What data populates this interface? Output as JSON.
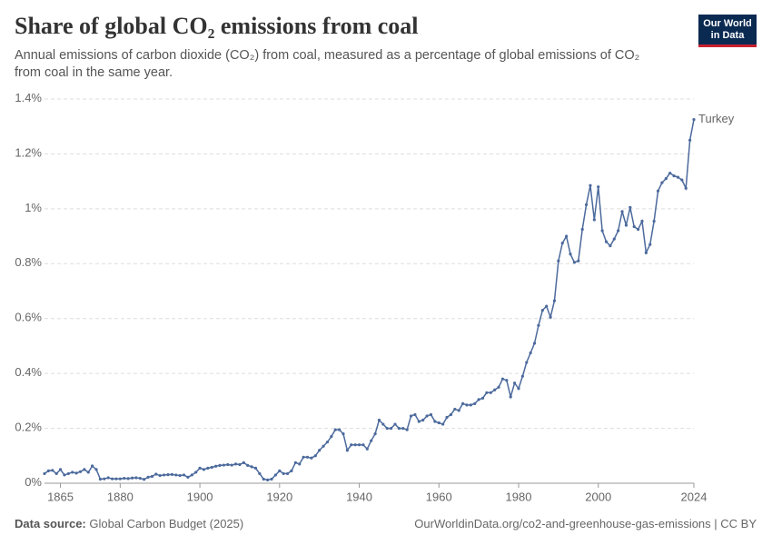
{
  "chart_data": {
    "type": "line",
    "title": "Share of global CO₂ emissions from coal",
    "subtitle": "Annual emissions of carbon dioxide (CO₂) from coal, measured as a percentage of global emissions of CO₂ from coal in the same year.",
    "logo": [
      "Our World",
      "in Data"
    ],
    "source_label": "Data source:",
    "source": "Global Carbon Budget (2025)",
    "url": "OurWorldinData.org/co2-and-greenhouse-gas-emissions | CC BY",
    "x": [
      1861,
      1862,
      1863,
      1864,
      1865,
      1866,
      1867,
      1868,
      1869,
      1870,
      1871,
      1872,
      1873,
      1874,
      1875,
      1876,
      1877,
      1878,
      1879,
      1880,
      1881,
      1882,
      1883,
      1884,
      1885,
      1886,
      1887,
      1888,
      1889,
      1890,
      1891,
      1892,
      1893,
      1894,
      1895,
      1896,
      1897,
      1898,
      1899,
      1900,
      1901,
      1902,
      1903,
      1904,
      1905,
      1906,
      1907,
      1908,
      1909,
      1910,
      1911,
      1912,
      1913,
      1914,
      1915,
      1916,
      1917,
      1918,
      1919,
      1920,
      1921,
      1922,
      1923,
      1924,
      1925,
      1926,
      1927,
      1928,
      1929,
      1930,
      1931,
      1932,
      1933,
      1934,
      1935,
      1936,
      1937,
      1938,
      1939,
      1940,
      1941,
      1942,
      1943,
      1944,
      1945,
      1946,
      1947,
      1948,
      1949,
      1950,
      1951,
      1952,
      1953,
      1954,
      1955,
      1956,
      1957,
      1958,
      1959,
      1960,
      1961,
      1962,
      1963,
      1964,
      1965,
      1966,
      1967,
      1968,
      1969,
      1970,
      1971,
      1972,
      1973,
      1974,
      1975,
      1976,
      1977,
      1978,
      1979,
      1980,
      1981,
      1982,
      1983,
      1984,
      1985,
      1986,
      1987,
      1988,
      1989,
      1990,
      1991,
      1992,
      1993,
      1994,
      1995,
      1996,
      1997,
      1998,
      1999,
      2000,
      2001,
      2002,
      2003,
      2004,
      2005,
      2006,
      2007,
      2008,
      2009,
      2010,
      2011,
      2012,
      2013,
      2014,
      2015,
      2016,
      2017,
      2018,
      2019,
      2020,
      2021,
      2022,
      2023,
      2024
    ],
    "series": [
      {
        "name": "Turkey",
        "color": "#4c6a9c",
        "values": [
          0.035,
          0.045,
          0.047,
          0.035,
          0.05,
          0.03,
          0.035,
          0.04,
          0.037,
          0.042,
          0.05,
          0.04,
          0.063,
          0.05,
          0.015,
          0.016,
          0.02,
          0.016,
          0.016,
          0.016,
          0.018,
          0.017,
          0.019,
          0.02,
          0.018,
          0.014,
          0.022,
          0.025,
          0.033,
          0.028,
          0.03,
          0.031,
          0.032,
          0.03,
          0.028,
          0.03,
          0.022,
          0.03,
          0.04,
          0.055,
          0.05,
          0.055,
          0.058,
          0.062,
          0.065,
          0.066,
          0.068,
          0.066,
          0.07,
          0.068,
          0.075,
          0.065,
          0.06,
          0.055,
          0.035,
          0.015,
          0.012,
          0.015,
          0.03,
          0.045,
          0.035,
          0.035,
          0.045,
          0.075,
          0.07,
          0.095,
          0.095,
          0.092,
          0.1,
          0.12,
          0.135,
          0.15,
          0.17,
          0.195,
          0.195,
          0.18,
          0.12,
          0.14,
          0.14,
          0.14,
          0.14,
          0.125,
          0.155,
          0.18,
          0.23,
          0.215,
          0.2,
          0.2,
          0.215,
          0.2,
          0.2,
          0.195,
          0.245,
          0.25,
          0.225,
          0.23,
          0.245,
          0.25,
          0.225,
          0.22,
          0.215,
          0.24,
          0.25,
          0.27,
          0.265,
          0.29,
          0.285,
          0.285,
          0.29,
          0.305,
          0.31,
          0.33,
          0.33,
          0.34,
          0.35,
          0.38,
          0.375,
          0.315,
          0.365,
          0.345,
          0.39,
          0.44,
          0.475,
          0.51,
          0.575,
          0.63,
          0.645,
          0.605,
          0.665,
          0.81,
          0.875,
          0.9,
          0.835,
          0.805,
          0.81,
          0.925,
          1.015,
          1.085,
          0.96,
          1.08,
          0.92,
          0.88,
          0.865,
          0.89,
          0.92,
          0.99,
          0.94,
          1.005,
          0.935,
          0.925,
          0.955,
          0.84,
          0.87,
          0.955,
          1.065,
          1.095,
          1.11,
          1.13,
          1.12,
          1.115,
          1.105,
          1.075,
          1.25,
          1.325
        ]
      }
    ],
    "xlim": [
      1861,
      2024
    ],
    "xticks": [
      1865,
      1880,
      1900,
      1920,
      1940,
      1960,
      1980,
      2000,
      2024
    ],
    "ylim": [
      0,
      1.4
    ],
    "yticks": [
      {
        "value": 0,
        "label": "0%"
      },
      {
        "value": 0.2,
        "label": "0.2%"
      },
      {
        "value": 0.4,
        "label": "0.4%"
      },
      {
        "value": 0.6,
        "label": "0.6%"
      },
      {
        "value": 0.8,
        "label": "0.8%"
      },
      {
        "value": 1,
        "label": "1%"
      },
      {
        "value": 1.2,
        "label": "1.2%"
      },
      {
        "value": 1.4,
        "label": "1.4%"
      }
    ],
    "grid": true
  }
}
